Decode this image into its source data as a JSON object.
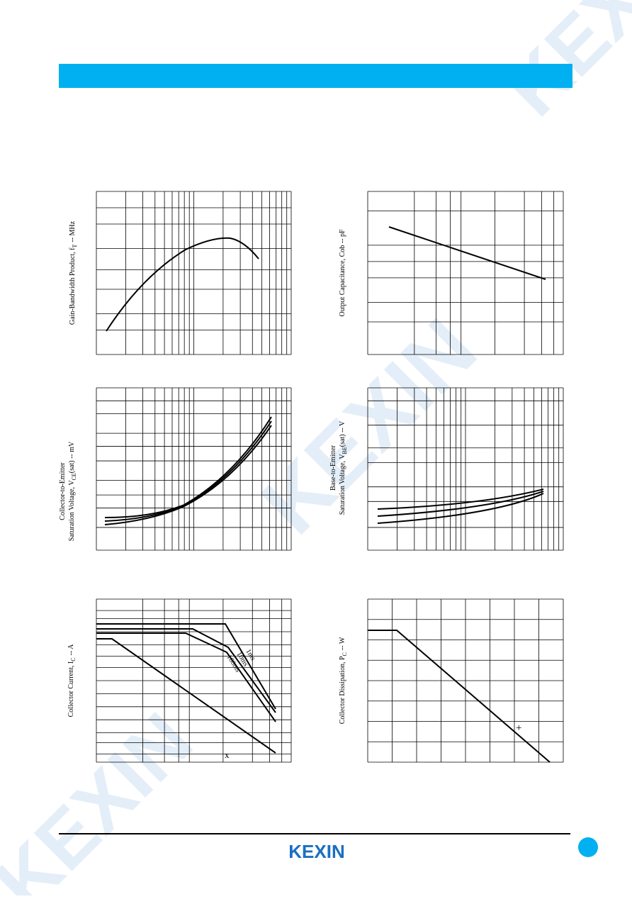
{
  "watermark": "KEXIN",
  "charts": [
    {
      "ylabel": [
        "Gain-Bandwidth Product, f",
        "T",
        "-- MHz"
      ]
    },
    {
      "ylabel": [
        "Output Capacitance, Cob -- pF"
      ]
    },
    {
      "ylabel_line1": "Collector-to-Emitter",
      "ylabel": [
        "Saturation Voltage, V",
        "CE",
        "(sat) -- mV"
      ]
    },
    {
      "ylabel_line1": "Base-to-Emitter",
      "ylabel": [
        "Saturation Voltage, V",
        "BE",
        "(sat) -- V"
      ]
    },
    {
      "ylabel": [
        "Collector Current, I",
        "C",
        "-- A"
      ],
      "annotations": [
        "1ms",
        "10ms",
        "100ms",
        "x"
      ]
    },
    {
      "ylabel": [
        "Collector Dissipation, P",
        "C",
        "-- W"
      ],
      "annotations": [
        "+"
      ]
    }
  ],
  "footer": {
    "logo": "KEXIN"
  }
}
